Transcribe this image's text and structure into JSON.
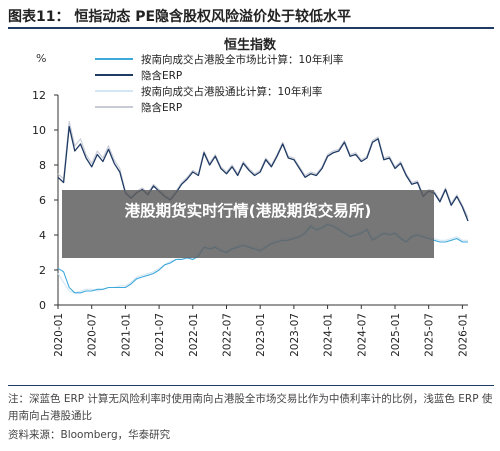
{
  "figure_title": "图表11：  恒指动态 PE隐含股权风险溢价处于较低水平",
  "overlay_text": "港股期货实时行情(港股期货交易所)",
  "note": "注：深蓝色 ERP 计算无风险利率时使用南向占港股全市场交易比作为中债利率计的比例，浅蓝色 ERP 使用南向占港股通比",
  "source": "资料来源：Bloomberg，华泰研究",
  "colors": {
    "navy": "#1f3a63",
    "sky": "#3fa9dc",
    "pale_navy": "#c8cbd6",
    "pale_sky": "#d4e6f3",
    "axis": "#333333"
  },
  "chart_data": {
    "type": "line",
    "title": "恒生指数",
    "ylabel": "%",
    "xlabel": "",
    "ylim": [
      0,
      12
    ],
    "yticks": [
      0,
      2,
      4,
      6,
      8,
      10,
      12
    ],
    "xlim": [
      "2020-01",
      "2026-02"
    ],
    "xticks": [
      "2020-01",
      "2020-07",
      "2021-01",
      "2021-07",
      "2022-01",
      "2022-07",
      "2023-01",
      "2023-07",
      "2024-01",
      "2024-07",
      "2025-01",
      "2025-07",
      "2026-01"
    ],
    "legend_position": "top-left",
    "grid": false,
    "series": [
      {
        "name": "按南向成交占港股全市场比计算：10年利率",
        "color": "#3fa9dc",
        "x": [
          "2020-01",
          "2020-02",
          "2020-03",
          "2020-04",
          "2020-05",
          "2020-06",
          "2020-07",
          "2020-08",
          "2020-09",
          "2020-10",
          "2020-11",
          "2020-12",
          "2021-01",
          "2021-02",
          "2021-03",
          "2021-04",
          "2021-05",
          "2021-06",
          "2021-07",
          "2021-08",
          "2021-09",
          "2021-10",
          "2021-11",
          "2021-12",
          "2022-01",
          "2022-02",
          "2022-03",
          "2022-04",
          "2022-05",
          "2022-06",
          "2022-07",
          "2022-08",
          "2022-09",
          "2022-10",
          "2022-11",
          "2022-12",
          "2023-01",
          "2023-02",
          "2023-03",
          "2023-04",
          "2023-05",
          "2023-06",
          "2023-07",
          "2023-08",
          "2023-09",
          "2023-10",
          "2023-11",
          "2023-12",
          "2024-01",
          "2024-02",
          "2024-03",
          "2024-04",
          "2024-05",
          "2024-06",
          "2024-07",
          "2024-08",
          "2024-09",
          "2024-10",
          "2024-11",
          "2024-12",
          "2025-01",
          "2025-02",
          "2025-03",
          "2025-04",
          "2025-05",
          "2025-06",
          "2025-07",
          "2025-08",
          "2025-09",
          "2025-10",
          "2025-11",
          "2025-12",
          "2026-01",
          "2026-02"
        ],
        "values": [
          2.1,
          1.9,
          1.0,
          0.7,
          0.7,
          0.8,
          0.8,
          0.9,
          0.9,
          1.0,
          1.0,
          1.0,
          1.0,
          1.2,
          1.5,
          1.6,
          1.7,
          1.8,
          2.0,
          2.3,
          2.4,
          2.6,
          2.6,
          2.7,
          2.6,
          2.8,
          3.3,
          3.2,
          3.3,
          3.1,
          3.0,
          3.2,
          3.3,
          3.4,
          3.3,
          3.2,
          3.1,
          3.3,
          3.5,
          3.6,
          3.7,
          3.7,
          3.8,
          3.9,
          4.1,
          4.5,
          4.3,
          4.4,
          4.6,
          4.5,
          4.3,
          4.1,
          3.9,
          4.0,
          4.1,
          4.3,
          3.7,
          3.9,
          4.1,
          4.0,
          4.1,
          3.8,
          3.6,
          3.9,
          4.0,
          3.9,
          3.8,
          3.7,
          3.6,
          3.6,
          3.7,
          3.8,
          3.6,
          3.6
        ]
      },
      {
        "name": "隐含ERP",
        "color": "#1f3a63",
        "x": [
          "2020-01",
          "2020-02",
          "2020-03",
          "2020-04",
          "2020-05",
          "2020-06",
          "2020-07",
          "2020-08",
          "2020-09",
          "2020-10",
          "2020-11",
          "2020-12",
          "2021-01",
          "2021-02",
          "2021-03",
          "2021-04",
          "2021-05",
          "2021-06",
          "2021-07",
          "2021-08",
          "2021-09",
          "2021-10",
          "2021-11",
          "2021-12",
          "2022-01",
          "2022-02",
          "2022-03",
          "2022-04",
          "2022-05",
          "2022-06",
          "2022-07",
          "2022-08",
          "2022-09",
          "2022-10",
          "2022-11",
          "2022-12",
          "2023-01",
          "2023-02",
          "2023-03",
          "2023-04",
          "2023-05",
          "2023-06",
          "2023-07",
          "2023-08",
          "2023-09",
          "2023-10",
          "2023-11",
          "2023-12",
          "2024-01",
          "2024-02",
          "2024-03",
          "2024-04",
          "2024-05",
          "2024-06",
          "2024-07",
          "2024-08",
          "2024-09",
          "2024-10",
          "2024-11",
          "2024-12",
          "2025-01",
          "2025-02",
          "2025-03",
          "2025-04",
          "2025-05",
          "2025-06",
          "2025-07",
          "2025-08",
          "2025-09",
          "2025-10",
          "2025-11",
          "2025-12",
          "2026-01",
          "2026-02"
        ],
        "values": [
          7.3,
          7.0,
          10.2,
          8.8,
          9.2,
          8.4,
          7.9,
          8.6,
          8.2,
          8.9,
          8.1,
          7.6,
          6.4,
          6.1,
          6.4,
          6.6,
          6.3,
          6.8,
          6.5,
          6.2,
          6.0,
          6.4,
          6.9,
          7.2,
          7.6,
          7.4,
          8.7,
          8.0,
          8.5,
          7.8,
          7.5,
          7.9,
          7.4,
          8.1,
          7.7,
          7.4,
          7.6,
          8.3,
          7.9,
          8.5,
          9.2,
          8.4,
          8.3,
          7.8,
          7.3,
          7.5,
          7.4,
          7.8,
          8.5,
          8.7,
          8.8,
          9.3,
          8.5,
          8.6,
          8.2,
          8.4,
          9.3,
          9.5,
          8.3,
          8.4,
          7.8,
          8.1,
          7.4,
          6.9,
          7.0,
          6.2,
          6.5,
          6.4,
          5.9,
          6.6,
          5.7,
          6.2,
          5.6,
          4.8
        ]
      },
      {
        "name": "按南向成交占港股通比计算：10年利率",
        "color": "#d4e6f3",
        "x": [
          "2020-01",
          "2020-02",
          "2020-03",
          "2020-04",
          "2020-05",
          "2020-06",
          "2020-07",
          "2020-08",
          "2020-09",
          "2020-10",
          "2020-11",
          "2020-12",
          "2021-01",
          "2021-02",
          "2021-03",
          "2021-04",
          "2021-05",
          "2021-06",
          "2021-07",
          "2021-08",
          "2021-09",
          "2021-10",
          "2021-11",
          "2021-12",
          "2022-01",
          "2022-02",
          "2022-03",
          "2022-04",
          "2022-05",
          "2022-06",
          "2022-07",
          "2022-08",
          "2022-09",
          "2022-10",
          "2022-11",
          "2022-12",
          "2023-01",
          "2023-02",
          "2023-03",
          "2023-04",
          "2023-05",
          "2023-06",
          "2023-07",
          "2023-08",
          "2023-09",
          "2023-10",
          "2023-11",
          "2023-12",
          "2024-01",
          "2024-02",
          "2024-03",
          "2024-04",
          "2024-05",
          "2024-06",
          "2024-07",
          "2024-08",
          "2024-09",
          "2024-10",
          "2024-11",
          "2024-12",
          "2025-01",
          "2025-02",
          "2025-03",
          "2025-04",
          "2025-05",
          "2025-06",
          "2025-07",
          "2025-08",
          "2025-09",
          "2025-10",
          "2025-11",
          "2025-12",
          "2026-01",
          "2026-02"
        ],
        "values": [
          1.8,
          1.3,
          0.8,
          0.7,
          0.8,
          0.9,
          0.9,
          0.8,
          0.9,
          1.0,
          1.0,
          1.1,
          1.1,
          1.3,
          1.6,
          1.7,
          1.8,
          1.9,
          2.1,
          2.3,
          2.5,
          2.6,
          2.7,
          2.7,
          2.7,
          2.9,
          3.3,
          3.3,
          3.4,
          3.2,
          3.1,
          3.3,
          3.4,
          3.5,
          3.4,
          3.3,
          3.2,
          3.4,
          3.6,
          3.7,
          3.8,
          3.8,
          3.9,
          4.0,
          4.2,
          4.6,
          4.4,
          4.5,
          4.7,
          4.6,
          4.4,
          4.2,
          4.0,
          4.1,
          4.2,
          4.4,
          3.8,
          4.0,
          4.2,
          4.1,
          4.2,
          3.9,
          3.7,
          4.0,
          4.1,
          4.0,
          3.9,
          3.8,
          3.7,
          3.7,
          3.8,
          3.9,
          3.7,
          3.7
        ]
      },
      {
        "name": "隐含ERP",
        "color": "#c8cbd6",
        "x": [
          "2020-01",
          "2020-02",
          "2020-03",
          "2020-04",
          "2020-05",
          "2020-06",
          "2020-07",
          "2020-08",
          "2020-09",
          "2020-10",
          "2020-11",
          "2020-12",
          "2021-01",
          "2021-02",
          "2021-03",
          "2021-04",
          "2021-05",
          "2021-06",
          "2021-07",
          "2021-08",
          "2021-09",
          "2021-10",
          "2021-11",
          "2021-12",
          "2022-01",
          "2022-02",
          "2022-03",
          "2022-04",
          "2022-05",
          "2022-06",
          "2022-07",
          "2022-08",
          "2022-09",
          "2022-10",
          "2022-11",
          "2022-12",
          "2023-01",
          "2023-02",
          "2023-03",
          "2023-04",
          "2023-05",
          "2023-06",
          "2023-07",
          "2023-08",
          "2023-09",
          "2023-10",
          "2023-11",
          "2023-12",
          "2024-01",
          "2024-02",
          "2024-03",
          "2024-04",
          "2024-05",
          "2024-06",
          "2024-07",
          "2024-08",
          "2024-09",
          "2024-10",
          "2024-11",
          "2024-12",
          "2025-01",
          "2025-02",
          "2025-03",
          "2025-04",
          "2025-05",
          "2025-06",
          "2025-07",
          "2025-08",
          "2025-09",
          "2025-10",
          "2025-11",
          "2025-12",
          "2026-01",
          "2026-02"
        ],
        "values": [
          7.5,
          7.2,
          10.5,
          9.1,
          9.5,
          8.6,
          8.1,
          8.8,
          8.4,
          9.1,
          8.3,
          7.8,
          6.5,
          6.2,
          6.5,
          6.7,
          6.4,
          6.9,
          6.6,
          6.3,
          6.1,
          6.5,
          7.0,
          7.3,
          7.7,
          7.5,
          8.8,
          8.1,
          8.6,
          7.9,
          7.6,
          8.0,
          7.5,
          8.2,
          7.8,
          7.5,
          7.7,
          8.4,
          8.0,
          8.6,
          9.3,
          8.5,
          8.4,
          7.9,
          7.4,
          7.6,
          7.5,
          7.9,
          8.6,
          8.8,
          8.9,
          9.4,
          8.6,
          8.7,
          8.3,
          8.5,
          9.4,
          9.6,
          8.4,
          8.5,
          7.9,
          8.2,
          7.5,
          7.0,
          7.1,
          6.3,
          6.6,
          6.5,
          6.0,
          6.7,
          5.8,
          6.3,
          5.7,
          5.0
        ]
      }
    ]
  }
}
